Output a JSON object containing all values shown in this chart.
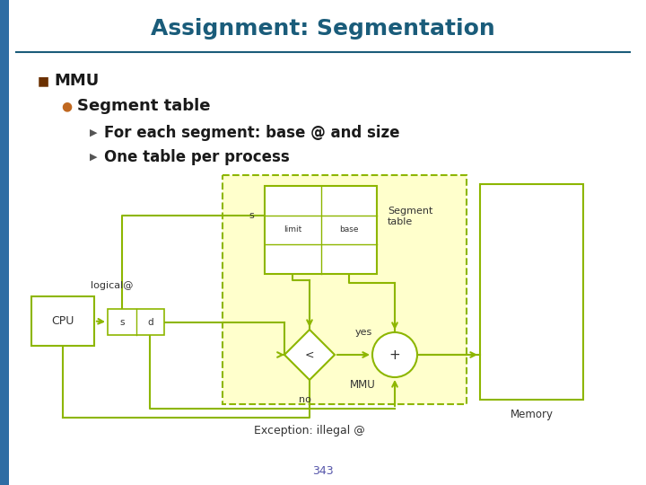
{
  "title": "Assignment: Segmentation",
  "title_color": "#1a5c7a",
  "title_fontsize": 18,
  "bg_color": "#ffffff",
  "left_bar_color": "#2e6da4",
  "bullet1": "MMU",
  "bullet2": "Segment table",
  "arrow1": "For each segment: base @ and size",
  "arrow2": "One table per process",
  "green": "#8db600",
  "yellow_fill": "#ffffcc",
  "page_num": "343",
  "page_num_color": "#5555aa"
}
